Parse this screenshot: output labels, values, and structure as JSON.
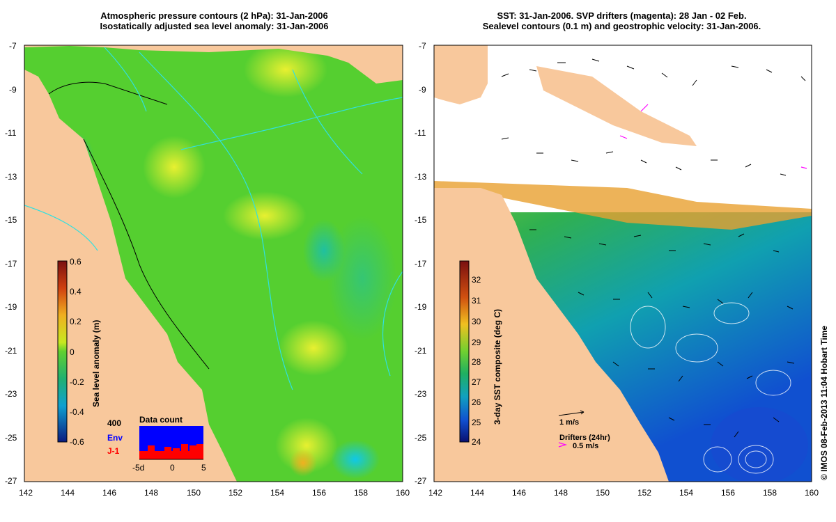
{
  "left_panel": {
    "title_line1": "Atmospheric pressure contours (2 hPa): 31-Jan-2006",
    "title_line2": "Isostatically adjusted sea level anomaly: 31-Jan-2006",
    "colorbar_label": "Sea level anomaly (m)",
    "colorbar_ticks": [
      "0.6",
      "0.4",
      "0.2",
      "0",
      "-0.2",
      "-0.4",
      "-0.6"
    ],
    "data_count": {
      "title": "Data count",
      "y_label": "400",
      "legend_env": "Env",
      "legend_j1": "J-1",
      "x_ticks": [
        "-5d",
        "0",
        "5"
      ],
      "env_color": "#0000ff",
      "j1_color": "#ff0000"
    }
  },
  "right_panel": {
    "title_line1": "SST: 31-Jan-2006. SVP drifters (magenta): 28 Jan - 02 Feb.",
    "title_line2": "Sealevel contours (0.1 m) and geostrophic velocity: 31-Jan-2006.",
    "colorbar_label": "3-day SST composite (deg C)",
    "colorbar_ticks": [
      "32",
      "31",
      "30",
      "29",
      "28",
      "27",
      "26",
      "25",
      "24"
    ],
    "velocity_scale_label": "1 m/s",
    "drifters_label": "Drifters (24hr)",
    "drifters_scale_label": "0.5 m/s",
    "drifter_color": "#ff00ff"
  },
  "map_axes": {
    "x_ticks": [
      "142",
      "144",
      "146",
      "148",
      "150",
      "152",
      "154",
      "156",
      "158",
      "160"
    ],
    "y_ticks": [
      "-7",
      "-9",
      "-11",
      "-13",
      "-15",
      "-17",
      "-19",
      "-21",
      "-23",
      "-25",
      "-27"
    ]
  },
  "credit": "© IMOS 08-Feb-2013 11:04 Hobart Time",
  "colors": {
    "land": "#f8c89c",
    "sea_level_green": "#55d030",
    "sst_warm": "#e08a20",
    "sst_cool": "#1a6fd8"
  }
}
